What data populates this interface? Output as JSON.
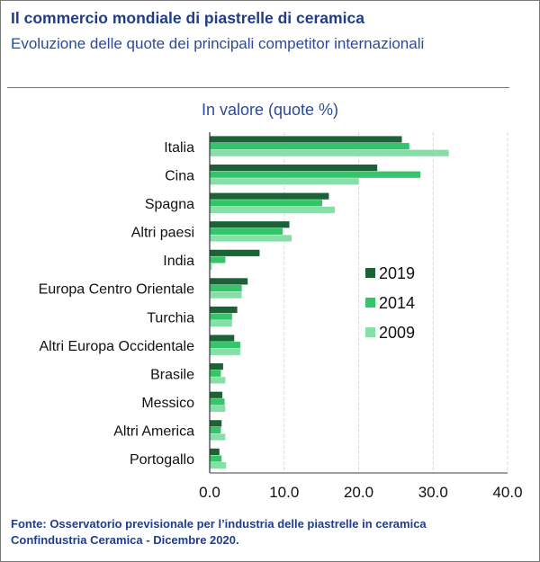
{
  "header": {
    "title": "Il commercio mondiale di piastrelle di ceramica",
    "subtitle": "Evoluzione delle quote dei principali competitor internazionali"
  },
  "footer": {
    "line1": "Fonte: Osservatorio previsionale per l’industria delle piastrelle in ceramica",
    "line2": "Confindustria Ceramica - Dicembre 2020."
  },
  "chart_data": {
    "type": "bar",
    "orientation": "horizontal",
    "title": "In valore (quote %)",
    "xlabel": "",
    "ylabel": "",
    "xlim": [
      0,
      40
    ],
    "xticks": [
      "0.0",
      "10.0",
      "20.0",
      "30.0",
      "40.0"
    ],
    "xtick_values": [
      0,
      10,
      20,
      30,
      40
    ],
    "grid": true,
    "legend_position": "right-center",
    "categories": [
      "Italia",
      "Cina",
      "Spagna",
      "Altri paesi",
      "India",
      "Europa Centro Orientale",
      "Turchia",
      "Altri Europa Occidentale",
      "Brasile",
      "Messico",
      "Altri America",
      "Portogallo"
    ],
    "series": [
      {
        "name": "2019",
        "color": "#1b6236",
        "values": [
          25.8,
          22.5,
          16.0,
          10.7,
          6.7,
          5.1,
          3.7,
          3.3,
          1.8,
          1.7,
          1.6,
          1.3
        ]
      },
      {
        "name": "2014",
        "color": "#34c46a",
        "values": [
          26.8,
          28.3,
          15.1,
          9.8,
          2.1,
          4.3,
          3.0,
          4.1,
          1.5,
          2.0,
          1.5,
          1.6
        ]
      },
      {
        "name": "2009",
        "color": "#86dfa6",
        "values": [
          32.1,
          20.0,
          16.8,
          11.0,
          0.3,
          4.3,
          3.0,
          4.1,
          2.1,
          2.1,
          2.1,
          2.2
        ]
      }
    ]
  }
}
